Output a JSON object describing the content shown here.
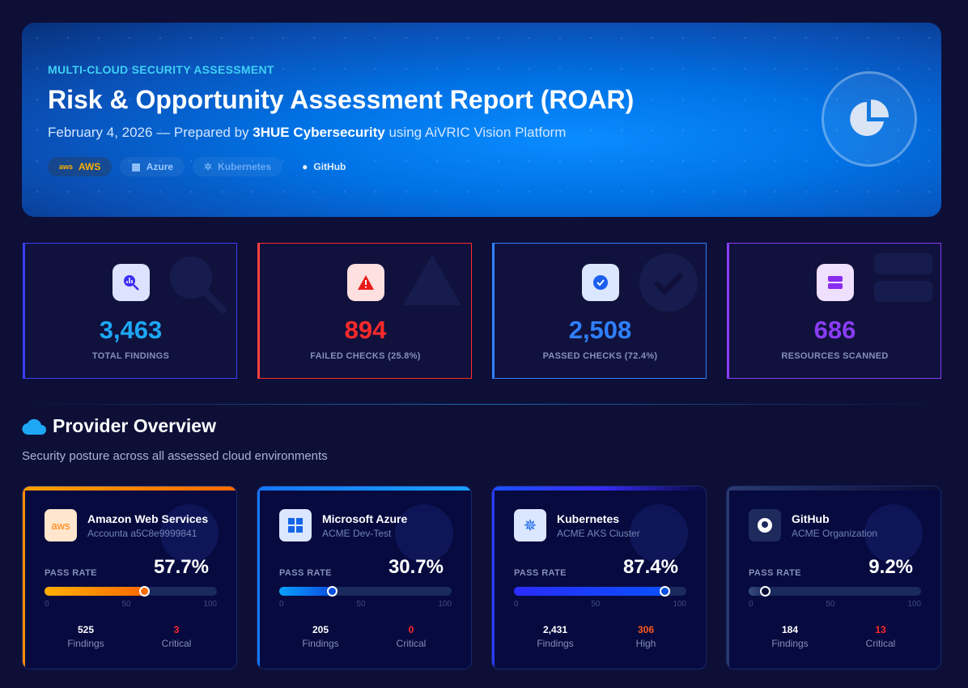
{
  "hero": {
    "eyebrow": "MULTI-CLOUD SECURITY ASSESSMENT",
    "title": "Risk & Opportunity Assessment Report (ROAR)",
    "date_prefix": "February 4, 2026 — Prepared by",
    "company": "3HUE Cybersecurity",
    "suffix": "using AiVRIC Vision Platform",
    "chips": [
      "AWS",
      "Azure",
      "Kubernetes",
      "GitHub"
    ],
    "icon": "pie-chart-icon"
  },
  "stats": [
    {
      "value": "3,463",
      "label": "TOTAL FINDINGS",
      "color": "#1ea7f5",
      "icon": "search-chart-icon"
    },
    {
      "value": "894",
      "label": "FAILED CHECKS (25.8%)",
      "color": "#ff2a2a",
      "icon": "warning-icon"
    },
    {
      "value": "2,508",
      "label": "PASSED CHECKS (72.4%)",
      "color": "#2f80ff",
      "icon": "check-circle-icon"
    },
    {
      "value": "686",
      "label": "RESOURCES SCANNED",
      "color": "#8a3cf5",
      "icon": "server-icon"
    }
  ],
  "section": {
    "title": "Provider Overview",
    "subtitle": "Security posture across all assessed cloud environments",
    "icon": "cloud-icon"
  },
  "pass_rate_label": "PASS RATE",
  "ticks": [
    "0",
    "50",
    "100"
  ],
  "providers": [
    {
      "name": "Amazon Web Services",
      "account": "Accounta a5C8e9999841",
      "pass_rate_text": "57.7%",
      "pass_rate": 57.7,
      "m1_value": "525",
      "m1_label": "Findings",
      "m2_value": "3",
      "m2_label": "Critical",
      "m2_color": "#ff2a2a",
      "accent": "#ff8c00"
    },
    {
      "name": "Microsoft Azure",
      "account": "ACME Dev-Test",
      "pass_rate_text": "30.7%",
      "pass_rate": 30.7,
      "m1_value": "205",
      "m1_label": "Findings",
      "m2_value": "0",
      "m2_label": "Critical",
      "m2_color": "#ff2a2a",
      "accent": "#1677ff"
    },
    {
      "name": "Kubernetes",
      "account": "ACME AKS Cluster",
      "pass_rate_text": "87.4%",
      "pass_rate": 87.4,
      "m1_value": "2,431",
      "m1_label": "Findings",
      "m2_value": "306",
      "m2_label": "High",
      "m2_color": "#ff5a1a",
      "accent": "#2a3cff"
    },
    {
      "name": "GitHub",
      "account": "ACME Organization",
      "pass_rate_text": "9.2%",
      "pass_rate": 9.2,
      "m1_value": "184",
      "m1_label": "Findings",
      "m2_value": "13",
      "m2_label": "Critical",
      "m2_color": "#ff2a2a",
      "accent": "#2a3a70"
    }
  ]
}
